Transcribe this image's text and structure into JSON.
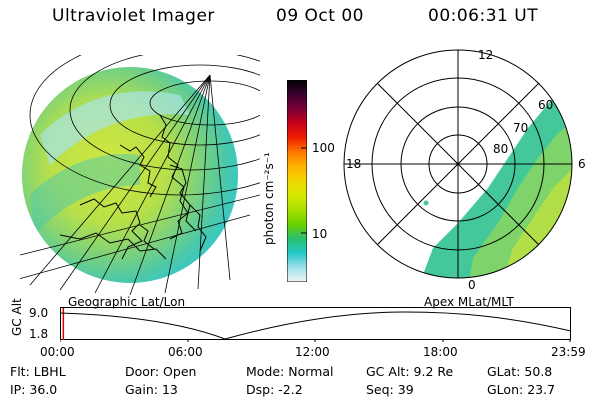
{
  "header": {
    "instrument": "Ultraviolet Imager",
    "date": "09 Oct 00",
    "time": "00:06:31 UT"
  },
  "colorbar": {
    "unit_label": "photon cm⁻²s⁻¹",
    "ticks": [
      "100",
      "10"
    ],
    "colors": [
      "#000000",
      "#3a0030",
      "#7a0038",
      "#c80018",
      "#f01e00",
      "#ff7800",
      "#ffb400",
      "#f0d800",
      "#d4e800",
      "#a8e000",
      "#6cd000",
      "#28c070",
      "#24c8c8",
      "#a0e0ea",
      "#f0f4f4"
    ]
  },
  "left_panel": {
    "caption": "Geographic Lat/Lon"
  },
  "right_panel": {
    "caption": "Apex MLat/MLT",
    "mlt_labels": {
      "top": "12",
      "left": "18",
      "right": "6",
      "bottom": "0"
    },
    "lat_labels": [
      "80",
      "70",
      "60"
    ]
  },
  "altitude_plot": {
    "axis_label": "GC Alt",
    "y_ticks": [
      "9.0",
      "1.8"
    ],
    "x_ticks": [
      "00:00",
      "06:00",
      "12:00",
      "18:00",
      "23:59"
    ],
    "current_marker_hour": 0.11
  },
  "footer": {
    "row1": [
      {
        "key": "Flt:",
        "val": "LBHL"
      },
      {
        "key": "Door:",
        "val": "Open"
      },
      {
        "key": "Mode:",
        "val": "Normal"
      },
      {
        "key": "GC Alt:",
        "val": "9.2 Re"
      },
      {
        "key": "GLat:",
        "val": "50.8"
      }
    ],
    "row2": [
      {
        "key": "IP:",
        "val": "36.0"
      },
      {
        "key": "Gain:",
        "val": "13"
      },
      {
        "key": "Dsp:",
        "val": "-2.2"
      },
      {
        "key": "Seq:",
        "val": "39"
      },
      {
        "key": "GLon:",
        "val": "23.7"
      }
    ]
  },
  "accent_color": "#c8e62a"
}
